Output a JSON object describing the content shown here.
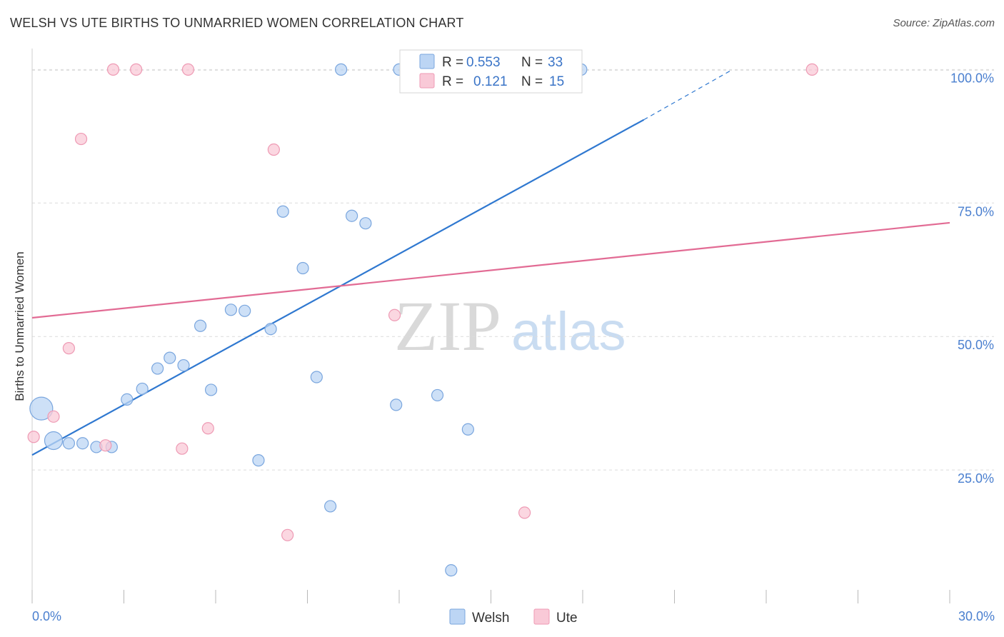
{
  "title": "WELSH VS UTE BIRTHS TO UNMARRIED WOMEN CORRELATION CHART",
  "source": "Source: ZipAtlas.com",
  "watermark": {
    "zip": "ZIP",
    "atlas": "atlas"
  },
  "colors": {
    "welsh_fill": "#bcd5f4",
    "welsh_stroke": "#7aa6de",
    "welsh_line": "#2f78d0",
    "ute_fill": "#f9c9d7",
    "ute_stroke": "#ee9ab4",
    "ute_line": "#e26b94",
    "grid": "#dcdcdc",
    "tick_text": "#4a7fcf"
  },
  "legend_box": {
    "rows": [
      {
        "r_label": "R =",
        "r_value": "0.553",
        "n_label": "N =",
        "n_value": "33",
        "series": "welsh"
      },
      {
        "r_label": "R =",
        "r_value": "0.121",
        "n_label": "N =",
        "n_value": "15",
        "series": "ute"
      }
    ]
  },
  "chart_data": {
    "type": "scatter",
    "title": "WELSH VS UTE BIRTHS TO UNMARRIED WOMEN CORRELATION CHART",
    "xlabel": "",
    "ylabel": "Births to Unmarried Women",
    "xlim": [
      0,
      30
    ],
    "ylim": [
      0,
      105
    ],
    "x_tick_labels": [
      "0.0%",
      "30.0%"
    ],
    "y_ticks": [
      25,
      50,
      75,
      100
    ],
    "y_tick_labels": [
      "25.0%",
      "50.0%",
      "75.0%",
      "100.0%"
    ],
    "grid": true,
    "legend_position": "bottom-center",
    "series": [
      {
        "name": "Welsh",
        "color": "#bcd5f4",
        "points": [
          [
            0.3,
            36.5,
            3
          ],
          [
            0.7,
            30.5,
            2
          ],
          [
            1.2,
            30.0,
            1
          ],
          [
            1.65,
            30.0,
            1
          ],
          [
            2.1,
            29.3,
            1
          ],
          [
            2.6,
            29.3,
            1
          ],
          [
            3.1,
            38.2,
            1
          ],
          [
            3.6,
            40.2,
            1
          ],
          [
            4.1,
            44.0,
            1
          ],
          [
            4.5,
            46.0,
            1
          ],
          [
            4.95,
            44.6,
            1
          ],
          [
            5.5,
            52.0,
            1
          ],
          [
            5.85,
            40.0,
            1
          ],
          [
            6.5,
            55.0,
            1
          ],
          [
            6.95,
            54.8,
            1
          ],
          [
            7.4,
            26.8,
            1
          ],
          [
            7.8,
            51.4,
            1
          ],
          [
            8.2,
            73.4,
            1
          ],
          [
            8.85,
            62.8,
            1
          ],
          [
            9.3,
            42.4,
            1
          ],
          [
            9.75,
            18.2,
            1
          ],
          [
            10.1,
            100.0,
            1
          ],
          [
            10.45,
            72.6,
            1
          ],
          [
            10.9,
            71.2,
            1
          ],
          [
            11.9,
            37.2,
            1
          ],
          [
            12.0,
            100.0,
            1
          ],
          [
            12.35,
            100.0,
            1
          ],
          [
            13.25,
            39.0,
            1
          ],
          [
            13.7,
            6.2,
            1
          ],
          [
            14.25,
            32.6,
            1
          ],
          [
            17.3,
            100.0,
            1
          ],
          [
            17.65,
            100.0,
            1
          ],
          [
            17.95,
            100.0,
            1
          ]
        ]
      },
      {
        "name": "Ute",
        "color": "#f9c9d7",
        "points": [
          [
            0.05,
            31.2,
            1
          ],
          [
            0.7,
            35.0,
            1
          ],
          [
            1.2,
            47.8,
            1
          ],
          [
            1.6,
            87.0,
            1
          ],
          [
            2.4,
            29.6,
            1
          ],
          [
            2.65,
            100.0,
            1
          ],
          [
            3.4,
            100.0,
            1
          ],
          [
            4.9,
            29.0,
            1
          ],
          [
            5.1,
            100.0,
            1
          ],
          [
            5.75,
            32.8,
            1
          ],
          [
            7.9,
            85.0,
            1
          ],
          [
            8.35,
            12.8,
            1
          ],
          [
            11.85,
            54.0,
            1
          ],
          [
            16.1,
            17.0,
            1
          ],
          [
            25.5,
            100.0,
            1
          ]
        ]
      }
    ],
    "trendlines": [
      {
        "series": "Welsh",
        "from": [
          0,
          27.8
        ],
        "to": [
          20.0,
          90.6
        ],
        "dashed_to": [
          22.9,
          100.0
        ]
      },
      {
        "series": "Ute",
        "from": [
          0,
          53.5
        ],
        "to": [
          30.0,
          71.3
        ]
      }
    ],
    "stats": [
      {
        "series": "Welsh",
        "R": 0.553,
        "N": 33
      },
      {
        "series": "Ute",
        "R": 0.121,
        "N": 15
      }
    ]
  }
}
